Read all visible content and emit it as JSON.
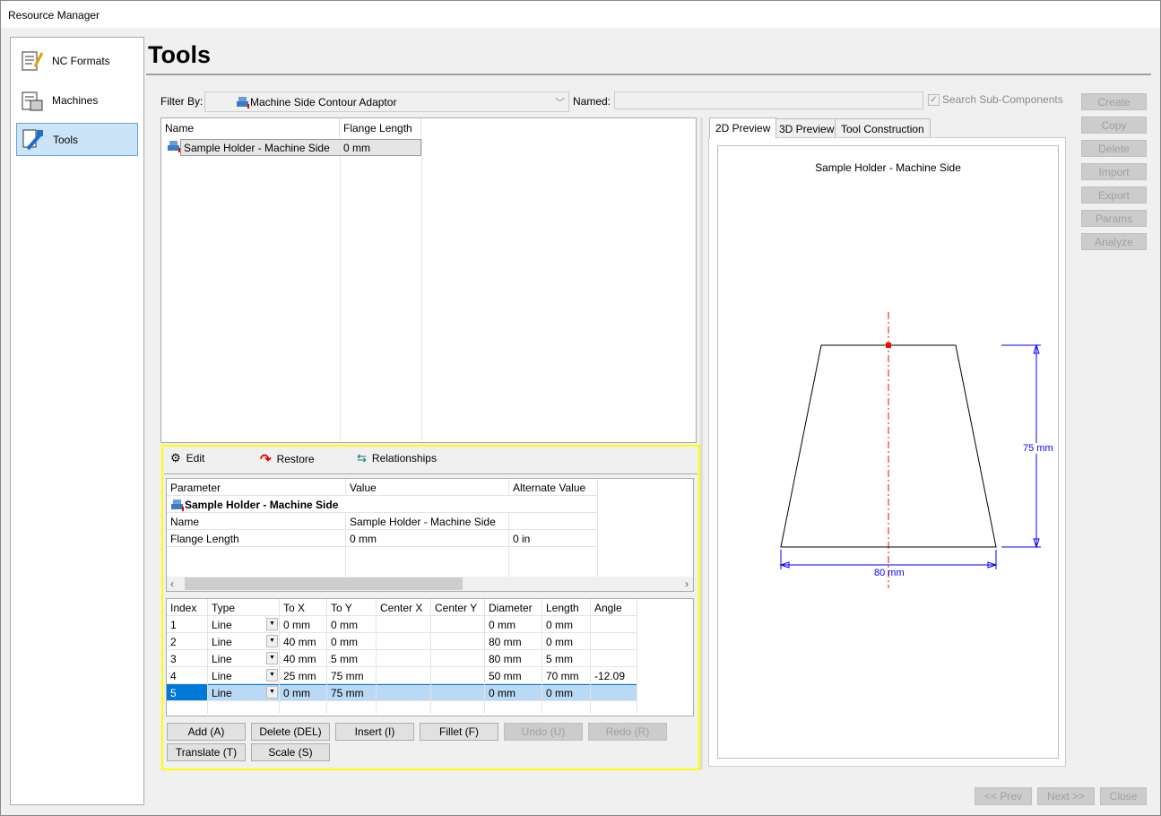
{
  "window": {
    "title": "Resource Manager"
  },
  "sidebar": {
    "items": [
      {
        "label": "NC Formats",
        "icon": "nc-formats-icon"
      },
      {
        "label": "Machines",
        "icon": "machines-icon"
      },
      {
        "label": "Tools",
        "icon": "tools-icon",
        "selected": true
      }
    ]
  },
  "page": {
    "title": "Tools"
  },
  "filter": {
    "label": "Filter By:",
    "value": "Machine Side Contour Adaptor",
    "named_label": "Named:",
    "named_value": "",
    "search_sub": "Search Sub-Components",
    "search_sub_checked": true
  },
  "actions": [
    "Create",
    "Copy",
    "Delete",
    "Import",
    "Export",
    "Params",
    "Analyze"
  ],
  "list": {
    "columns": [
      "Name",
      "Flange Length"
    ],
    "rows": [
      {
        "name": "Sample Holder - Machine Side",
        "flange": "0 mm"
      }
    ]
  },
  "tabs": [
    "2D Preview",
    "3D Preview",
    "Tool Construction"
  ],
  "preview": {
    "title": "Sample Holder - Machine Side",
    "dim_height": "75 mm",
    "dim_width": "80 mm",
    "colors": {
      "dimension": "#0000ff",
      "centerline": "#ff0000"
    }
  },
  "toolbar": {
    "edit": "Edit",
    "restore": "Restore",
    "relationships": "Relationships"
  },
  "params": {
    "columns": [
      "Parameter",
      "Value",
      "Alternate Value"
    ],
    "group": "Sample Holder - Machine Side",
    "rows": [
      [
        "Name",
        "Sample Holder - Machine Side",
        ""
      ],
      [
        "Flange Length",
        "0 mm",
        "0 in"
      ]
    ]
  },
  "segments": {
    "columns": [
      "Index",
      "Type",
      "To X",
      "To Y",
      "Center X",
      "Center Y",
      "Diameter",
      "Length",
      "Angle"
    ],
    "rows": [
      [
        "1",
        "Line",
        "0 mm",
        "0 mm",
        "",
        "",
        "0 mm",
        "0 mm",
        ""
      ],
      [
        "2",
        "Line",
        "40 mm",
        "0 mm",
        "",
        "",
        "80 mm",
        "0 mm",
        ""
      ],
      [
        "3",
        "Line",
        "40 mm",
        "5 mm",
        "",
        "",
        "80 mm",
        "5 mm",
        ""
      ],
      [
        "4",
        "Line",
        "25 mm",
        "75 mm",
        "",
        "",
        "50 mm",
        "70 mm",
        "-12.09"
      ],
      [
        "5",
        "Line",
        "0 mm",
        "75 mm",
        "",
        "",
        "0 mm",
        "0 mm",
        ""
      ]
    ],
    "selected_index": 5
  },
  "edit_buttons": {
    "add": "Add (A)",
    "delete": "Delete (DEL)",
    "insert": "Insert (I)",
    "fillet": "Fillet (F)",
    "undo": "Undo (U)",
    "redo": "Redo (R)",
    "translate": "Translate (T)",
    "scale": "Scale (S)"
  },
  "footer": {
    "prev": "<< Prev",
    "next": "Next >>",
    "close": "Close"
  }
}
